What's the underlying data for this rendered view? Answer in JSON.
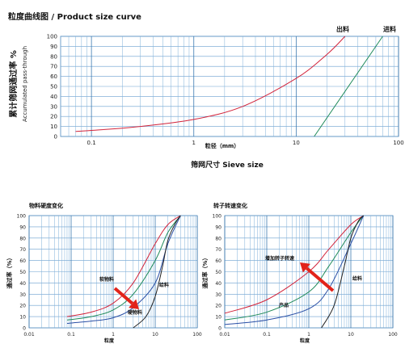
{
  "chart_data": [
    {
      "type": "line",
      "title": "粒度曲线图 / Product size curve",
      "xscale": "log",
      "xlim": [
        0.05,
        100
      ],
      "ylim": [
        0,
        100
      ],
      "grid": true,
      "x_ticks": [
        "0.1",
        "1",
        "10",
        "100"
      ],
      "y_ticks": [
        "0",
        "10",
        "20",
        "30",
        "40",
        "50",
        "60",
        "70",
        "80",
        "90",
        "100"
      ],
      "xlabel": "粒径（mm）",
      "xlabel2": "筛网尺寸  Sieve size",
      "ylabel": "累计筛网通过率 %",
      "ylabel_en": "Accumulated pass-through",
      "series": [
        {
          "name": "出料",
          "color": "#d2243b",
          "x": [
            0.07,
            0.1,
            0.3,
            1,
            3,
            10,
            20,
            30
          ],
          "y": [
            5,
            6,
            10,
            17,
            30,
            58,
            82,
            100
          ]
        },
        {
          "name": "进料",
          "color": "#1f8a5a",
          "x": [
            15,
            70
          ],
          "y": [
            0,
            100
          ]
        }
      ]
    },
    {
      "type": "line",
      "title": "物料硬度变化",
      "xscale": "log",
      "xlim": [
        0.01,
        100
      ],
      "ylim": [
        0,
        100
      ],
      "grid": true,
      "x_ticks": [
        "0.01",
        "0.1",
        "1",
        "10",
        "100"
      ],
      "y_ticks": [
        "0",
        "10",
        "20",
        "30",
        "40",
        "50",
        "60",
        "70",
        "80",
        "90",
        "100"
      ],
      "xlabel": "粒度",
      "ylabel": "通过率（%）",
      "annotations": [
        "软物料",
        "硬物料",
        "给料"
      ],
      "series": [
        {
          "name": "软物料",
          "color": "#d2243b",
          "x": [
            0.08,
            0.3,
            1,
            3,
            10,
            20,
            40
          ],
          "y": [
            10,
            14,
            22,
            40,
            75,
            92,
            100
          ]
        },
        {
          "name": "",
          "color": "#1f8a5a",
          "x": [
            0.08,
            0.3,
            1,
            3,
            10,
            20,
            40
          ],
          "y": [
            7,
            10,
            16,
            30,
            60,
            85,
            100
          ]
        },
        {
          "name": "硬物料",
          "color": "#2a4fa5",
          "x": [
            0.08,
            0.3,
            1,
            3,
            10,
            20,
            40
          ],
          "y": [
            4,
            6,
            9,
            18,
            40,
            75,
            100
          ]
        },
        {
          "name": "给料",
          "color": "#222222",
          "x": [
            3,
            6,
            10,
            15,
            20,
            30,
            40
          ],
          "y": [
            0,
            10,
            28,
            55,
            78,
            93,
            100
          ]
        }
      ]
    },
    {
      "type": "line",
      "title": "转子转速变化",
      "xscale": "log",
      "xlim": [
        0.01,
        100
      ],
      "ylim": [
        0,
        100
      ],
      "grid": true,
      "x_ticks": [
        "0.01",
        "0.1",
        "1",
        "10",
        "100"
      ],
      "y_ticks": [
        "0",
        "10",
        "20",
        "30",
        "40",
        "50",
        "60",
        "70",
        "80",
        "90",
        "100"
      ],
      "xlabel": "粒度",
      "ylabel": "通过率（%）",
      "annotations": [
        "增加转子转速",
        "产品",
        "给料"
      ],
      "series": [
        {
          "name": "",
          "color": "#d2243b",
          "x": [
            0.01,
            0.1,
            1,
            3,
            10,
            20
          ],
          "y": [
            13,
            25,
            50,
            70,
            92,
            100
          ]
        },
        {
          "name": "",
          "color": "#1f8a5a",
          "x": [
            0.01,
            0.1,
            1,
            3,
            10,
            20
          ],
          "y": [
            7,
            14,
            32,
            55,
            85,
            100
          ]
        },
        {
          "name": "产品",
          "color": "#2a4fa5",
          "x": [
            0.01,
            0.1,
            1,
            3,
            10,
            20
          ],
          "y": [
            3,
            7,
            17,
            35,
            75,
            100
          ]
        },
        {
          "name": "给料",
          "color": "#222222",
          "x": [
            2,
            4,
            7,
            10,
            15,
            20
          ],
          "y": [
            0,
            20,
            55,
            80,
            95,
            100
          ]
        }
      ]
    }
  ]
}
